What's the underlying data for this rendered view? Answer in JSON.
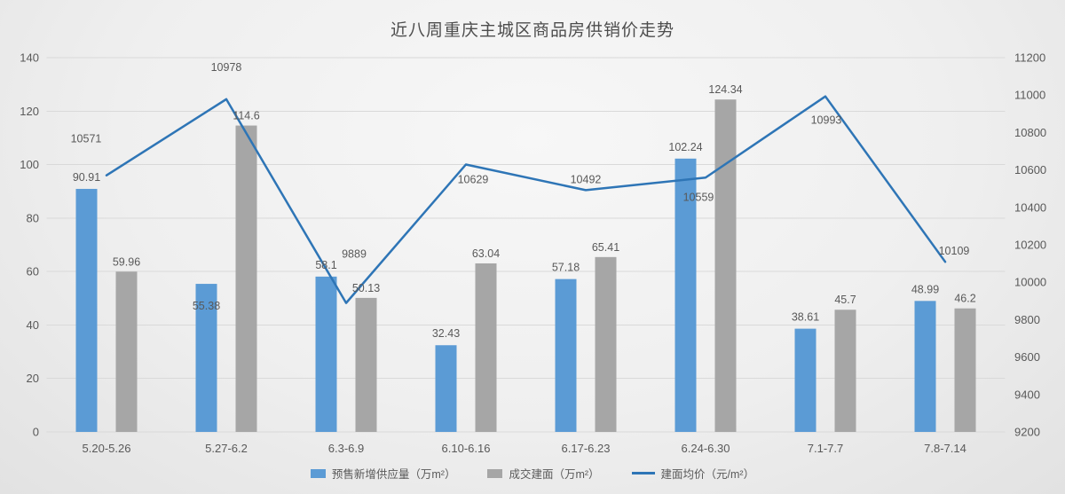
{
  "chart_data": {
    "type": "bar+line",
    "title": "近八周重庆主城区商品房供销价走势",
    "categories": [
      "5.20-5.26",
      "5.27-6.2",
      "6.3-6.9",
      "6.10-6.16",
      "6.17-6.23",
      "6.24-6.30",
      "7.1-7.7",
      "7.8-7.14"
    ],
    "series": [
      {
        "name": "预售新增供应量（万m²）",
        "type": "bar",
        "axis": "left",
        "color": "#5B9BD5",
        "values": [
          90.91,
          55.38,
          58.1,
          32.43,
          57.18,
          102.24,
          38.61,
          48.99
        ]
      },
      {
        "name": "成交建面（万m²）",
        "type": "bar",
        "axis": "left",
        "color": "#A6A6A6",
        "values": [
          59.96,
          114.6,
          50.13,
          63.04,
          65.41,
          124.34,
          45.7,
          46.2
        ]
      },
      {
        "name": "建面均价（元/m²）",
        "type": "line",
        "axis": "right",
        "color": "#2E75B6",
        "values": [
          10571,
          10978,
          9889,
          10629,
          10492,
          10559,
          10993,
          10109
        ]
      }
    ],
    "left_axis": {
      "min": 0,
      "max": 140,
      "step": 20
    },
    "right_axis": {
      "min": 9200,
      "max": 11200,
      "step": 200
    },
    "grid": true,
    "grid_color": "#d9d9d9",
    "text_color": "#595959",
    "legend_position": "bottom"
  }
}
